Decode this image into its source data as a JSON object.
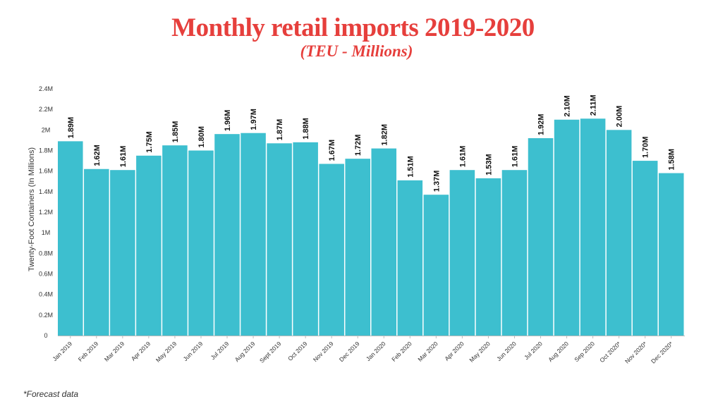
{
  "chart_data": {
    "type": "bar",
    "title": "Monthly retail imports 2019-2020",
    "subtitle": "(TEU - Millions)",
    "xlabel": "",
    "ylabel": "Twenty-Foot Containers (In Millions)",
    "ylim": [
      0,
      2.4
    ],
    "yticks": [
      0,
      0.2,
      0.4,
      0.6,
      0.8,
      1,
      1.2,
      1.4,
      1.6,
      1.8,
      2,
      2.2,
      2.4
    ],
    "ytick_labels": [
      "0",
      "0.2M",
      "0.4M",
      "0.6M",
      "0.8M",
      "1M",
      "1.2M",
      "1.4M",
      "1.6M",
      "1.8M",
      "2M",
      "2.2M",
      "2.4M"
    ],
    "categories": [
      "Jan 2019",
      "Feb 2019",
      "Mar 2019",
      "Apr 2019",
      "May 2019",
      "Jun 2019",
      "Jul 2019",
      "Aug 2019",
      "Sept 2019",
      "Oct 2019",
      "Nov 2019",
      "Dec 2019",
      "Jan 2020",
      "Feb 2020",
      "Mar 2020",
      "Apr 2020",
      "May 2020",
      "Jun 2020",
      "Jul 2020",
      "Aug 2020",
      "Sep 2020",
      "Oct 2020*",
      "Nov 2020*",
      "Dec 2020*"
    ],
    "values": [
      1.89,
      1.62,
      1.61,
      1.75,
      1.85,
      1.8,
      1.96,
      1.97,
      1.87,
      1.88,
      1.67,
      1.72,
      1.82,
      1.51,
      1.37,
      1.61,
      1.53,
      1.61,
      1.92,
      2.1,
      2.11,
      2.0,
      1.7,
      1.58
    ],
    "data_labels": [
      "1.89M",
      "1.62M",
      "1.61M",
      "1.75M",
      "1.85M",
      "1.80M",
      "1.96M",
      "1.97M",
      "1.87M",
      "1.88M",
      "1.67M",
      "1.72M",
      "1.82M",
      "1.51M",
      "1.37M",
      "1.61M",
      "1.53M",
      "1.61M",
      "1.92M",
      "2.10M",
      "2.11M",
      "2.00M",
      "1.70M",
      "1.58M"
    ],
    "grid": false,
    "legend": "none",
    "bar_color": "#3dbfcf",
    "title_color": "#e63f3c"
  },
  "footnote": "*Forecast data"
}
